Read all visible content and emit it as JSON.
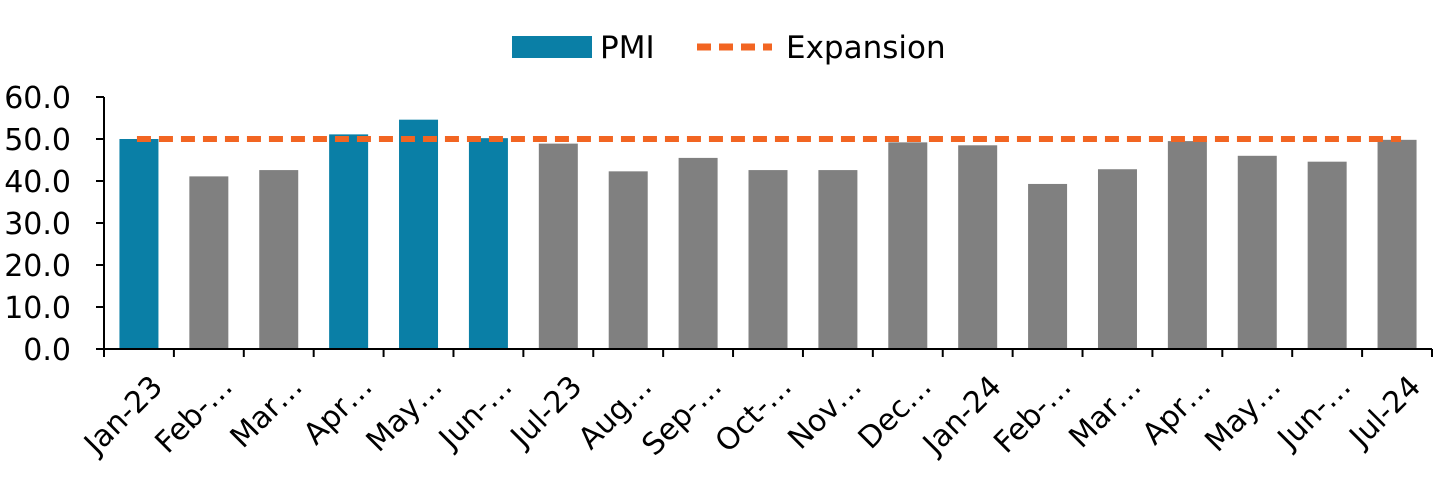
{
  "chart_data": {
    "type": "bar",
    "categories": [
      "Jan-23",
      "Feb-…",
      "Mar…",
      "Apr…",
      "May…",
      "Jun-…",
      "Jul-23",
      "Aug…",
      "Sep-…",
      "Oct-…",
      "Nov…",
      "Dec…",
      "Jan-24",
      "Feb-…",
      "Mar…",
      "Apr…",
      "May…",
      "Jun-…",
      "Jul-24"
    ],
    "series": [
      {
        "name": "PMI",
        "values": [
          50.0,
          41.1,
          42.6,
          51.1,
          54.6,
          50.2,
          48.9,
          42.3,
          45.5,
          42.6,
          42.6,
          49.2,
          48.5,
          39.3,
          42.8,
          49.5,
          46.0,
          44.6,
          49.8
        ]
      }
    ],
    "expansion": {
      "name": "Expansion",
      "value": 50
    },
    "highlight_flags": [
      true,
      false,
      false,
      true,
      true,
      true,
      false,
      false,
      false,
      false,
      false,
      false,
      false,
      false,
      false,
      false,
      false,
      false,
      false
    ],
    "y_ticks": [
      "0.0",
      "10.0",
      "20.0",
      "30.0",
      "40.0",
      "50.0",
      "60.0"
    ],
    "ylim": [
      0,
      60
    ],
    "legend_position": "top-center",
    "grid": false,
    "colors": {
      "pmi": "#0a7fa6",
      "other": "#808080",
      "expansion": "#f26522",
      "axis": "#000000"
    }
  }
}
